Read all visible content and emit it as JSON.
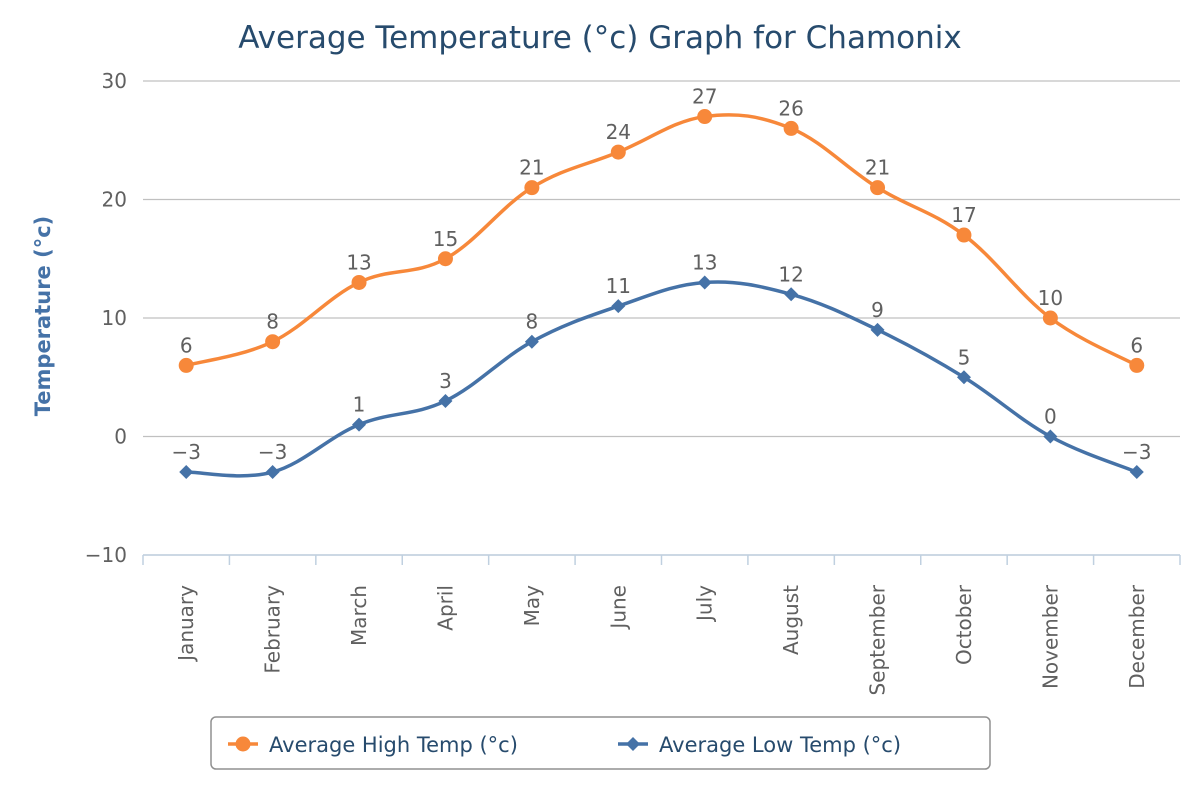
{
  "chart_data": {
    "type": "line",
    "title": "Average Temperature (°c) Graph for Chamonix",
    "xlabel": "",
    "ylabel": "Temperature (°c)",
    "ylim": [
      -10,
      30
    ],
    "yticks": [
      -10,
      0,
      10,
      20,
      30
    ],
    "grid": true,
    "legend_position": "bottom",
    "categories": [
      "January",
      "February",
      "March",
      "April",
      "May",
      "June",
      "July",
      "August",
      "September",
      "October",
      "November",
      "December"
    ],
    "series": [
      {
        "name": "Average High Temp (°c)",
        "color": "#f7883a",
        "marker": "circle",
        "values": [
          6,
          8,
          13,
          15,
          21,
          24,
          27,
          26,
          21,
          17,
          10,
          6
        ],
        "labels": [
          "6",
          "8",
          "13",
          "15",
          "21",
          "24",
          "27",
          "26",
          "21",
          "17",
          "10",
          "6"
        ]
      },
      {
        "name": "Average Low Temp (°c)",
        "color": "#4572a7",
        "marker": "diamond",
        "values": [
          -3,
          -3,
          1,
          3,
          8,
          11,
          13,
          12,
          9,
          5,
          0,
          -3
        ],
        "labels": [
          "−3",
          "−3",
          "1",
          "3",
          "8",
          "11",
          "13",
          "12",
          "9",
          "5",
          "0",
          "−3"
        ]
      }
    ],
    "ytick_labels": [
      "−10",
      "0",
      "10",
      "20",
      "30"
    ]
  }
}
